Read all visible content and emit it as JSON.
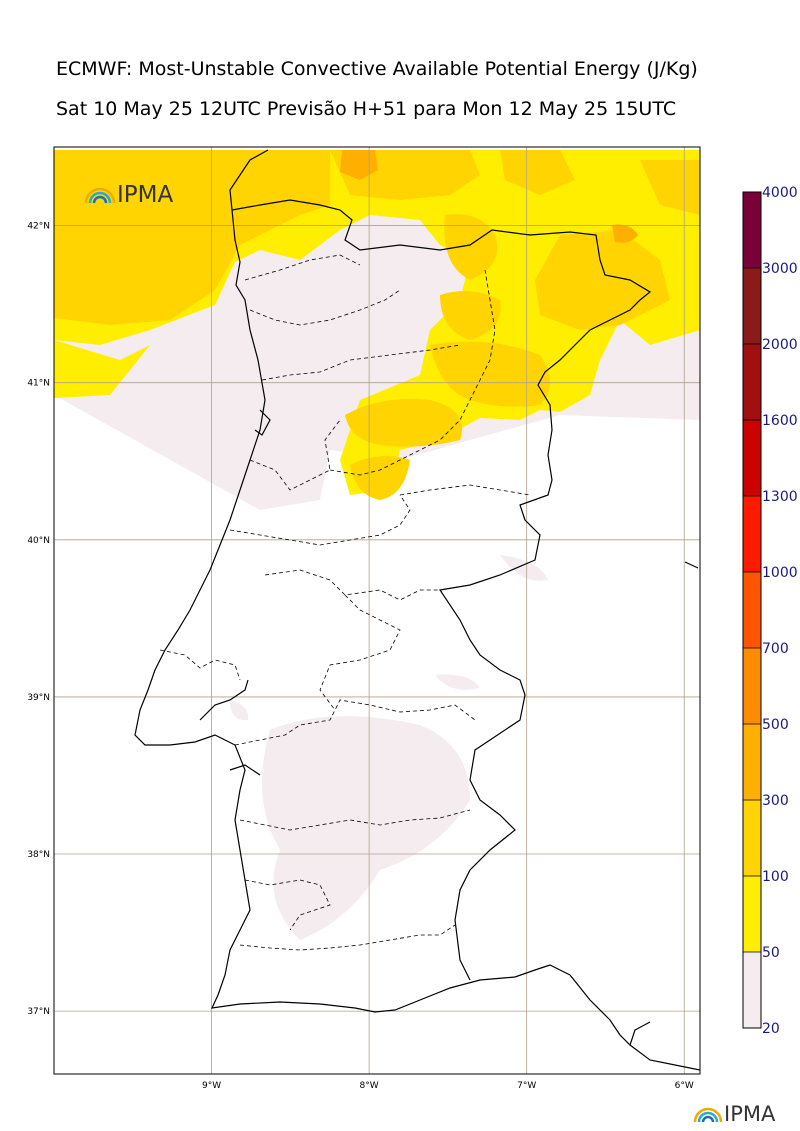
{
  "header": {
    "title": "ECMWF: Most-Unstable Convective Available Potential Energy (J/Kg)",
    "subtitle": "Sat 10 May 25 12UTC Previsão H+51 para Mon 12 May 25 15UTC"
  },
  "map": {
    "longitudes": [
      {
        "label": "9°W",
        "lon": -9
      },
      {
        "label": "8°W",
        "lon": -8
      },
      {
        "label": "7°W",
        "lon": -7
      },
      {
        "label": "6°W",
        "lon": -6
      }
    ],
    "latitudes": [
      {
        "label": "42°N",
        "lat": 42
      },
      {
        "label": "41°N",
        "lat": 41
      },
      {
        "label": "40°N",
        "lat": 40
      },
      {
        "label": "39°N",
        "lat": 39
      },
      {
        "label": "38°N",
        "lat": 38
      },
      {
        "label": "37°N",
        "lat": 37
      }
    ],
    "extent": {
      "lon_min": -10.0,
      "lon_max": -5.9,
      "lat_min": 36.6,
      "lat_max": 42.5
    },
    "grid_color": "#b0a08a"
  },
  "colorbar": {
    "levels": [
      "20",
      "50",
      "100",
      "300",
      "500",
      "700",
      "1000",
      "1300",
      "1600",
      "2000",
      "3000",
      "4000"
    ],
    "colors": [
      "#f5ecef",
      "#ffee00",
      "#ffd400",
      "#ffaf00",
      "#ff8c00",
      "#ff5500",
      "#ff1a00",
      "#cc0000",
      "#a01010",
      "#8b1a1a",
      "#7a0038",
      "#5c0f00"
    ]
  },
  "field_colors": {
    "low": "#f5ecef",
    "yellow": "#ffee00",
    "gold": "#ffd400",
    "orange": "#ffaf00"
  },
  "logos": {
    "top_text": "IPMA",
    "bottom_text": "IPMA"
  }
}
